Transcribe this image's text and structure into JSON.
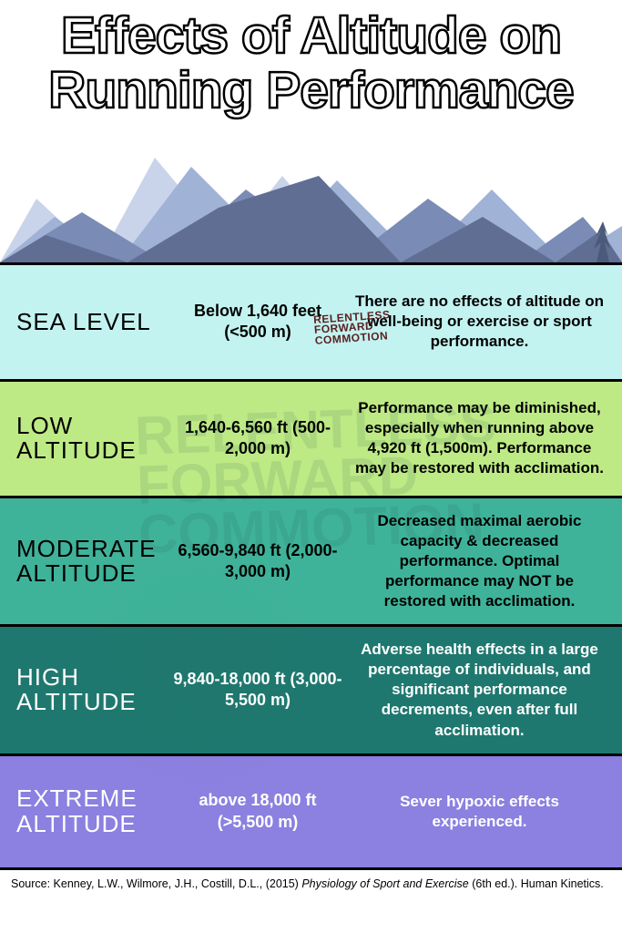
{
  "title": "Effects of Altitude on Running Performance",
  "logo_text": "RELENTLESS FORWARD COMMOTION",
  "mountains": {
    "colors": [
      "#c9d4ea",
      "#a0b3d6",
      "#7a8bb5",
      "#606e94"
    ],
    "tree_color": "#4a5a7a"
  },
  "rows": [
    {
      "label": "SEA LEVEL",
      "range": "Below 1,640 feet (<500 m)",
      "desc": "There are no effects of altitude on well-being or exercise or sport performance.",
      "bg": "#c3f3f0",
      "label_color": "#000000",
      "range_color": "#000000",
      "desc_color": "#000000"
    },
    {
      "label": "LOW ALTITUDE",
      "range": "1,640-6,560 ft (500-2,000 m)",
      "desc": "Performance may be diminished, especially when running above 4,920 ft (1,500m). Performance may be restored with acclimation.",
      "bg": "#beea86",
      "label_color": "#000000",
      "range_color": "#000000",
      "desc_color": "#000000"
    },
    {
      "label": "MODERATE ALTITUDE",
      "range": "6,560-9,840 ft (2,000-3,000 m)",
      "desc": "Decreased maximal aerobic capacity & decreased performance.  Optimal performance may NOT be restored with acclimation.",
      "bg": "#3fb39a",
      "label_color": "#000000",
      "range_color": "#000000",
      "desc_color": "#000000"
    },
    {
      "label": "HIGH ALTITUDE",
      "range": "9,840-18,000 ft (3,000-5,500 m)",
      "desc": "Adverse health effects in a large percentage of individuals, and significant performance decrements, even after full acclimation.",
      "bg": "#1f786f",
      "label_color": "#ffffff",
      "range_color": "#ffffff",
      "desc_color": "#ffffff"
    },
    {
      "label": "EXTREME ALTITUDE",
      "range": "above 18,000 ft (>5,500 m)",
      "desc": "Sever hypoxic effects experienced.",
      "bg": "#8c80e0",
      "label_color": "#ffffff",
      "range_color": "#ffffff",
      "desc_color": "#ffffff"
    }
  ],
  "source": {
    "prefix": "Source: Kenney, L.W., Wilmore, J.H., Costill, D.L., (2015) ",
    "italic": "Physiology of Sport and Exercise",
    "suffix": " (6th ed.). Human Kinetics."
  }
}
